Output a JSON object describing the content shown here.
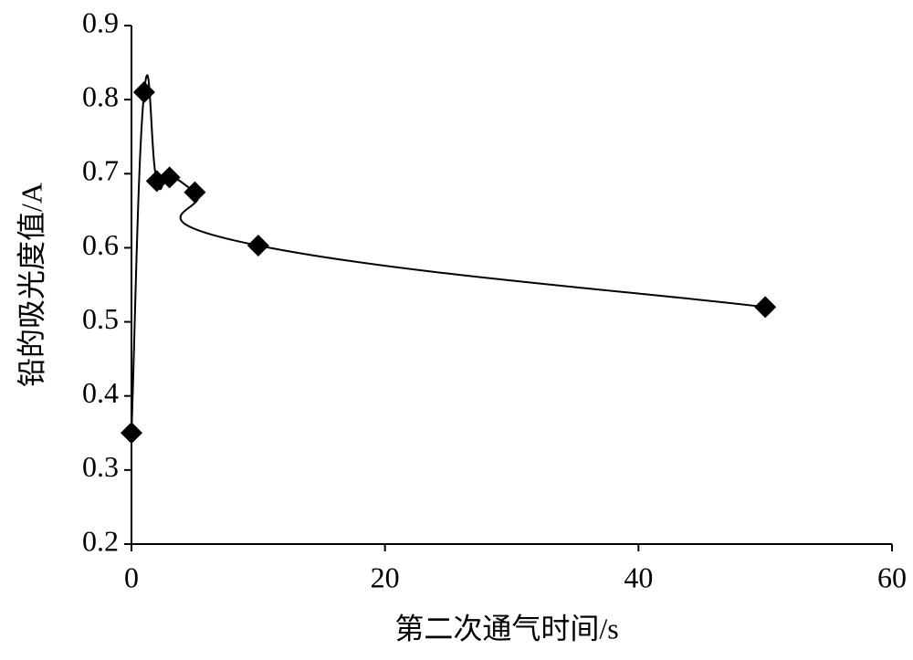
{
  "chart_data": {
    "type": "scatter",
    "xlabel": "第二次通气时间/s",
    "ylabel": "铅的吸光度值/A",
    "series": [
      {
        "color": "#000000",
        "x": [
          0,
          1,
          2,
          3,
          5,
          10,
          50
        ],
        "values": [
          0.35,
          0.81,
          0.69,
          0.695,
          0.675,
          0.603,
          0.52
        ]
      }
    ],
    "xlim": [
      0,
      60
    ],
    "xticks": [
      0,
      20,
      40,
      60
    ],
    "ylim": [
      0.2,
      0.9
    ],
    "yticks": [
      0.2,
      0.3,
      0.4,
      0.5,
      0.6,
      0.7,
      0.8,
      0.9
    ]
  }
}
